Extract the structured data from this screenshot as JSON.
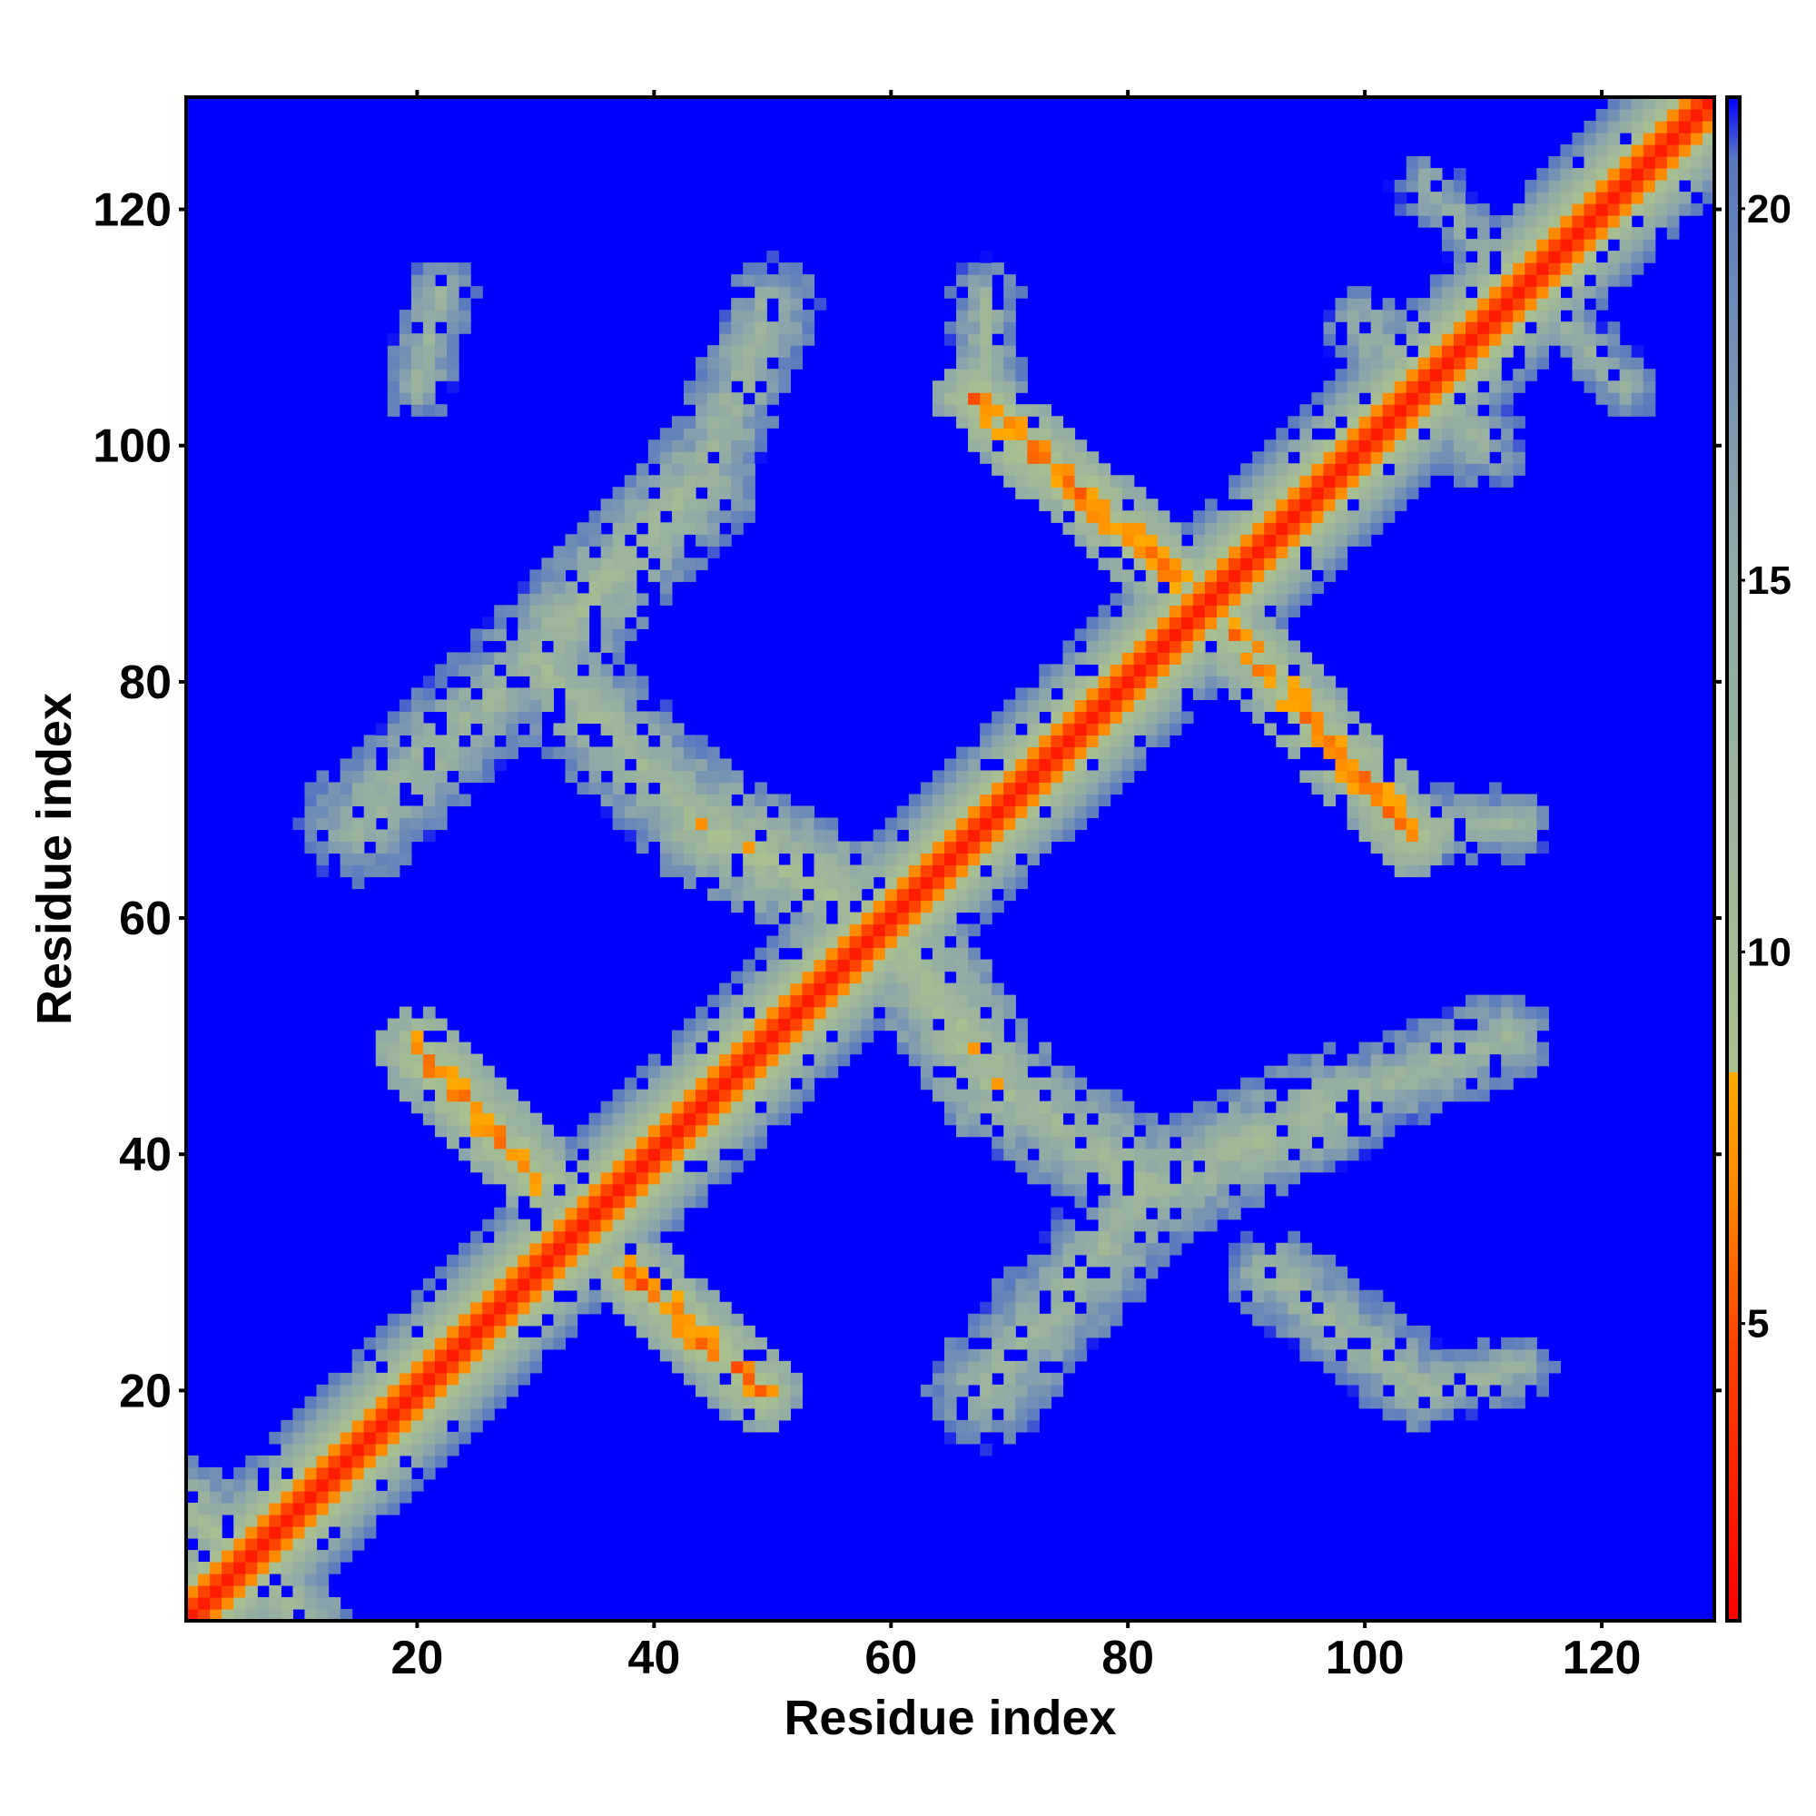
{
  "chart_data": {
    "type": "heatmap",
    "title": "",
    "xlabel": "Residue index",
    "ylabel": "Residue index",
    "n": 129,
    "xlim": [
      1,
      129
    ],
    "ylim": [
      1,
      129
    ],
    "x_ticks": [
      20,
      40,
      60,
      80,
      100,
      120
    ],
    "y_ticks": [
      20,
      40,
      60,
      80,
      100,
      120
    ],
    "x_tick_labels": [
      "20",
      "40",
      "60",
      "80",
      "100",
      "120"
    ],
    "y_tick_labels": [
      "20",
      "40",
      "60",
      "80",
      "100",
      "120"
    ],
    "colorbar": {
      "ticks": [
        5,
        10,
        15,
        20
      ],
      "tick_labels": [
        "5",
        "10",
        "15",
        "20"
      ],
      "range": [
        1,
        21.5
      ],
      "colors": [
        "#ff0000",
        "#ff4400",
        "#ff8800",
        "#ffaa00",
        "#a8c090",
        "#90a8a8",
        "#5878c0",
        "#0000ff"
      ],
      "stops": [
        0,
        0.18,
        0.28,
        0.36,
        0.36,
        0.7,
        0.96,
        1.0
      ]
    },
    "value_encoding": "distance between residues i and j (Angstrom); cells above the colorbar maximum render as saturated blue",
    "structure": {
      "diagonal": {
        "from": [
          1,
          1
        ],
        "to": [
          129,
          129
        ],
        "width": 1.6,
        "core_value": 2.5
      },
      "contact_bands": [
        {
          "from": [
            20,
            49
          ],
          "to": [
            30,
            38
          ],
          "width": 3.5,
          "core_value": 6.5
        },
        {
          "from": [
            38,
            30
          ],
          "to": [
            49,
            20
          ],
          "width": 3.5,
          "core_value": 6.5
        },
        {
          "from": [
            67,
            104
          ],
          "to": [
            84,
            89
          ],
          "width": 3.5,
          "core_value": 6.5
        },
        {
          "from": [
            89,
            84
          ],
          "to": [
            104,
            67
          ],
          "width": 3.5,
          "core_value": 6.5
        },
        {
          "from": [
            44,
            97
          ],
          "to": [
            30,
            82
          ],
          "width": 5,
          "core_value": 10.5
        },
        {
          "from": [
            30,
            82
          ],
          "to": [
            15,
            68
          ],
          "width": 5,
          "core_value": 11.5
        },
        {
          "from": [
            30,
            82
          ],
          "to": [
            44,
            68
          ],
          "width": 5,
          "core_value": 10.5
        },
        {
          "from": [
            44,
            68
          ],
          "to": [
            56,
            62
          ],
          "width": 5,
          "core_value": 9
        },
        {
          "from": [
            62,
            56
          ],
          "to": [
            69,
            46
          ],
          "width": 5,
          "core_value": 9
        },
        {
          "from": [
            69,
            46
          ],
          "to": [
            82,
            37
          ],
          "width": 5,
          "core_value": 10.5
        },
        {
          "from": [
            82,
            37
          ],
          "to": [
            97,
            44
          ],
          "width": 5,
          "core_value": 10.5
        },
        {
          "from": [
            82,
            37
          ],
          "to": [
            68,
            20
          ],
          "width": 5,
          "core_value": 11.5
        },
        {
          "from": [
            97,
            44
          ],
          "to": [
            112,
            50
          ],
          "width": 4,
          "core_value": 11.5
        },
        {
          "from": [
            92,
            30
          ],
          "to": [
            105,
            20
          ],
          "width": 4,
          "core_value": 11.5
        },
        {
          "from": [
            105,
            20
          ],
          "to": [
            113,
            22
          ],
          "width": 3,
          "core_value": 12
        },
        {
          "from": [
            20,
            105
          ],
          "to": [
            22,
            113
          ],
          "width": 3,
          "core_value": 12
        },
        {
          "from": [
            44,
            97
          ],
          "to": [
            50,
            112
          ],
          "width": 4,
          "core_value": 11.5
        },
        {
          "from": [
            68,
            104
          ],
          "to": [
            68,
            113
          ],
          "width": 3,
          "core_value": 12
        },
        {
          "from": [
            104,
            68
          ],
          "to": [
            113,
            68
          ],
          "width": 3,
          "core_value": 12
        },
        {
          "from": [
            100,
            110
          ],
          "to": [
            110,
            100
          ],
          "width": 4,
          "core_value": 12.5
        },
        {
          "from": [
            105,
            122
          ],
          "to": [
            122,
            105
          ],
          "width": 3,
          "core_value": 13
        },
        {
          "from": [
            1,
            10
          ],
          "to": [
            10,
            1
          ],
          "width": 4,
          "core_value": 10
        }
      ],
      "noise_level": 0.25
    }
  }
}
